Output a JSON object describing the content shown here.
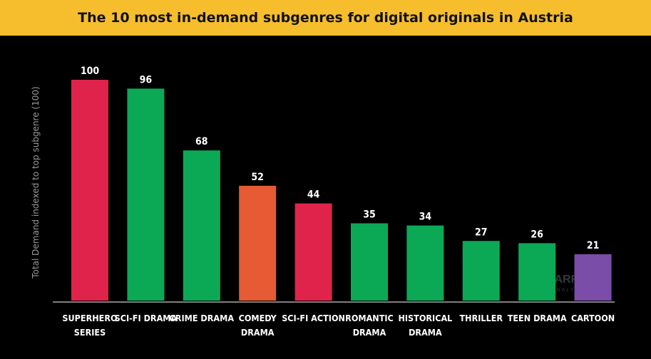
{
  "chart_data": {
    "type": "bar",
    "title": "The 10 most in-demand subgenres for digital originals in Austria",
    "ylabel": "Total Demand indexed to top subgenre (100)",
    "xlabel": "",
    "ylim": [
      0,
      100
    ],
    "grid": false,
    "legend": "none",
    "categories": [
      [
        "SUPERHERO",
        "SERIES"
      ],
      [
        "SCI-FI DRAMA"
      ],
      [
        "CRIME DRAMA"
      ],
      [
        "COMEDY",
        "DRAMA"
      ],
      [
        "SCI-FI ACTION"
      ],
      [
        "ROMANTIC",
        "DRAMA"
      ],
      [
        "HISTORICAL",
        "DRAMA"
      ],
      [
        "THRILLER"
      ],
      [
        "TEEN DRAMA"
      ],
      [
        "CARTOON"
      ]
    ],
    "values": [
      100,
      96,
      68,
      52,
      44,
      35,
      34,
      27,
      26,
      21
    ],
    "colors": [
      "#E0234A",
      "#0BA956",
      "#0BA956",
      "#E65B34",
      "#E0234A",
      "#0BA956",
      "#0BA956",
      "#0BA956",
      "#0BA956",
      "#7A4DA8"
    ]
  },
  "watermark": {
    "name": "PARROT",
    "sub": "ANALYTICS",
    "icon": "parrot-logo-icon"
  },
  "colors": {
    "title_bar": "#F6BE2C",
    "background": "#000000",
    "axis": "#FFFFFF"
  }
}
